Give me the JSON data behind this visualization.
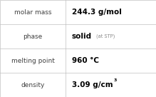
{
  "rows": [
    {
      "label": "molar mass",
      "value": "244.3 g/mol",
      "type": "plain"
    },
    {
      "label": "phase",
      "value": "solid",
      "suffix": "(at STP)",
      "type": "suffix"
    },
    {
      "label": "melting point",
      "value": "960 °C",
      "type": "plain"
    },
    {
      "label": "density",
      "value": "3.09 g/cm",
      "superscript": "3",
      "type": "super"
    }
  ],
  "background_color": "#ffffff",
  "border_color": "#c0c0c0",
  "label_color": "#404040",
  "value_color": "#000000",
  "suffix_color": "#888888",
  "fig_width": 2.19,
  "fig_height": 1.36,
  "dpi": 100,
  "col_split": 0.42,
  "label_fontsize": 6.5,
  "value_fontsize": 7.5,
  "suffix_fontsize": 4.8,
  "super_fontsize": 4.5
}
